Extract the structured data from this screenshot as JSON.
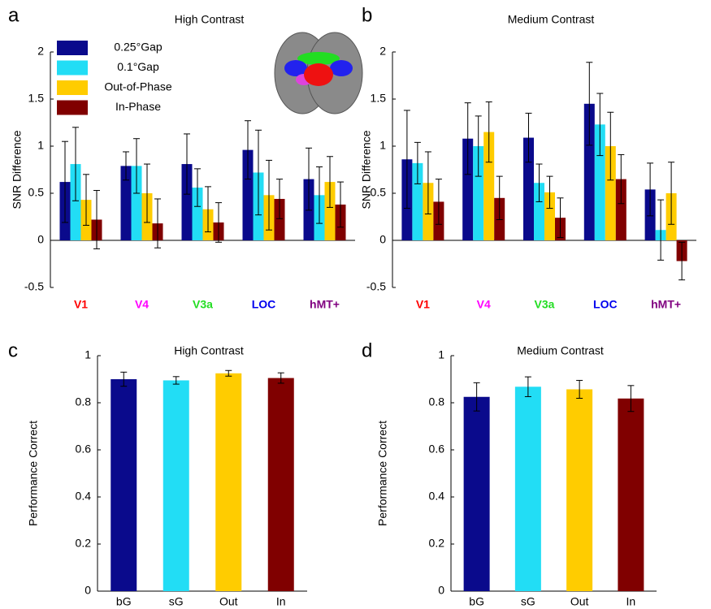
{
  "chart_data": [
    {
      "panel": "a",
      "type": "bar",
      "title": "High Contrast",
      "ylabel": "SNR Difference",
      "categories": [
        "V1",
        "V4",
        "V3a",
        "LOC",
        "hMT+"
      ],
      "category_colors": [
        "#ff0000",
        "#ff00ff",
        "#22dd22",
        "#0000ee",
        "#800080"
      ],
      "series": [
        {
          "name": "0.25°Gap",
          "color": "#0a0a8c",
          "values": [
            0.62,
            0.79,
            0.81,
            0.96,
            0.65
          ],
          "errors": [
            0.43,
            0.15,
            0.32,
            0.31,
            0.33
          ]
        },
        {
          "name": "0.1°Gap",
          "color": "#22ddf5",
          "values": [
            0.81,
            0.79,
            0.56,
            0.72,
            0.48
          ],
          "errors": [
            0.39,
            0.29,
            0.2,
            0.45,
            0.3
          ]
        },
        {
          "name": "Out-of-Phase",
          "color": "#ffcc00",
          "values": [
            0.43,
            0.5,
            0.33,
            0.48,
            0.62
          ],
          "errors": [
            0.27,
            0.31,
            0.24,
            0.37,
            0.27
          ]
        },
        {
          "name": "In-Phase",
          "color": "#800000",
          "values": [
            0.22,
            0.18,
            0.19,
            0.44,
            0.38
          ],
          "errors": [
            0.31,
            0.26,
            0.21,
            0.21,
            0.24
          ]
        }
      ],
      "ylim": [
        -0.5,
        2
      ],
      "yticks": [
        -0.5,
        0,
        0.5,
        1,
        1.5,
        2
      ],
      "legend": "upper left"
    },
    {
      "panel": "b",
      "type": "bar",
      "title": "Medium Contrast",
      "ylabel": "SNR Difference",
      "categories": [
        "V1",
        "V4",
        "V3a",
        "LOC",
        "hMT+"
      ],
      "category_colors": [
        "#ff0000",
        "#ff00ff",
        "#22dd22",
        "#0000ee",
        "#800080"
      ],
      "series": [
        {
          "color": "#0a0a8c",
          "values": [
            0.86,
            1.08,
            1.09,
            1.45,
            0.54
          ],
          "errors": [
            0.52,
            0.38,
            0.26,
            0.44,
            0.28
          ]
        },
        {
          "color": "#22ddf5",
          "values": [
            0.82,
            1.0,
            0.61,
            1.23,
            0.11
          ],
          "errors": [
            0.22,
            0.32,
            0.2,
            0.33,
            0.32
          ]
        },
        {
          "color": "#ffcc00",
          "values": [
            0.61,
            1.15,
            0.51,
            1.0,
            0.5
          ],
          "errors": [
            0.33,
            0.32,
            0.17,
            0.36,
            0.33
          ]
        },
        {
          "color": "#800000",
          "values": [
            0.41,
            0.45,
            0.24,
            0.65,
            -0.22
          ],
          "errors": [
            0.24,
            0.23,
            0.21,
            0.26,
            0.2
          ]
        }
      ],
      "ylim": [
        -0.5,
        2
      ],
      "yticks": [
        -0.5,
        0,
        0.5,
        1,
        1.5,
        2
      ]
    },
    {
      "panel": "c",
      "type": "bar",
      "title": "High Contrast",
      "ylabel": "Performance Correct",
      "categories": [
        "bG",
        "sG",
        "Out",
        "In"
      ],
      "colors": [
        "#0a0a8c",
        "#22ddf5",
        "#ffcc00",
        "#800000"
      ],
      "values": [
        0.9,
        0.895,
        0.925,
        0.905
      ],
      "errors": [
        0.03,
        0.016,
        0.012,
        0.022
      ],
      "ylim": [
        0,
        1
      ],
      "yticks": [
        0,
        0.2,
        0.4,
        0.6,
        0.8,
        1
      ]
    },
    {
      "panel": "d",
      "type": "bar",
      "title": "Medium Contrast",
      "ylabel": "Performance Correct",
      "categories": [
        "bG",
        "sG",
        "Out",
        "In"
      ],
      "colors": [
        "#0a0a8c",
        "#22ddf5",
        "#ffcc00",
        "#800000"
      ],
      "values": [
        0.825,
        0.868,
        0.857,
        0.818
      ],
      "errors": [
        0.06,
        0.042,
        0.038,
        0.055
      ],
      "ylim": [
        0,
        1
      ],
      "yticks": [
        0,
        0.2,
        0.4,
        0.6,
        0.8,
        1
      ]
    }
  ]
}
